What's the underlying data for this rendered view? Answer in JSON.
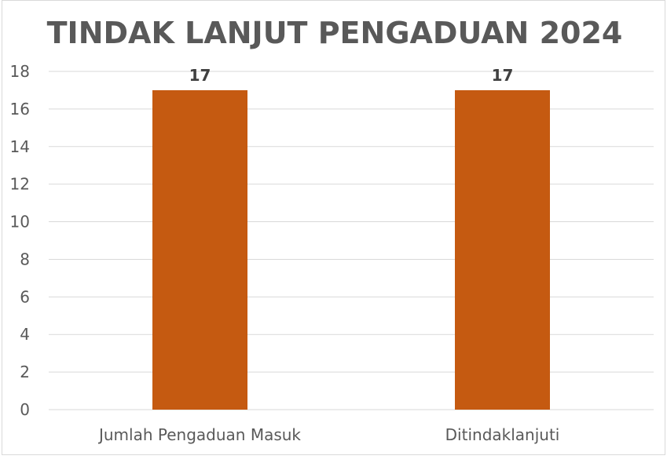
{
  "chart_data": {
    "type": "bar",
    "title": "TINDAK LANJUT PENGADUAN 2024",
    "categories": [
      "Jumlah Pengaduan Masuk",
      "Ditindaklanjuti"
    ],
    "values": [
      17,
      17
    ],
    "data_labels": [
      "17",
      "17"
    ],
    "ylim": [
      0,
      18
    ],
    "y_ticks": [
      "0",
      "2",
      "4",
      "6",
      "8",
      "10",
      "12",
      "14",
      "16",
      "18"
    ],
    "xlabel": "",
    "ylabel": "",
    "grid": true,
    "legend": "none",
    "colors": {
      "bar": "#c55a11",
      "grid": "#d9d9d9",
      "title": "#595959",
      "tick": "#595959",
      "data_label": "#404040"
    }
  }
}
